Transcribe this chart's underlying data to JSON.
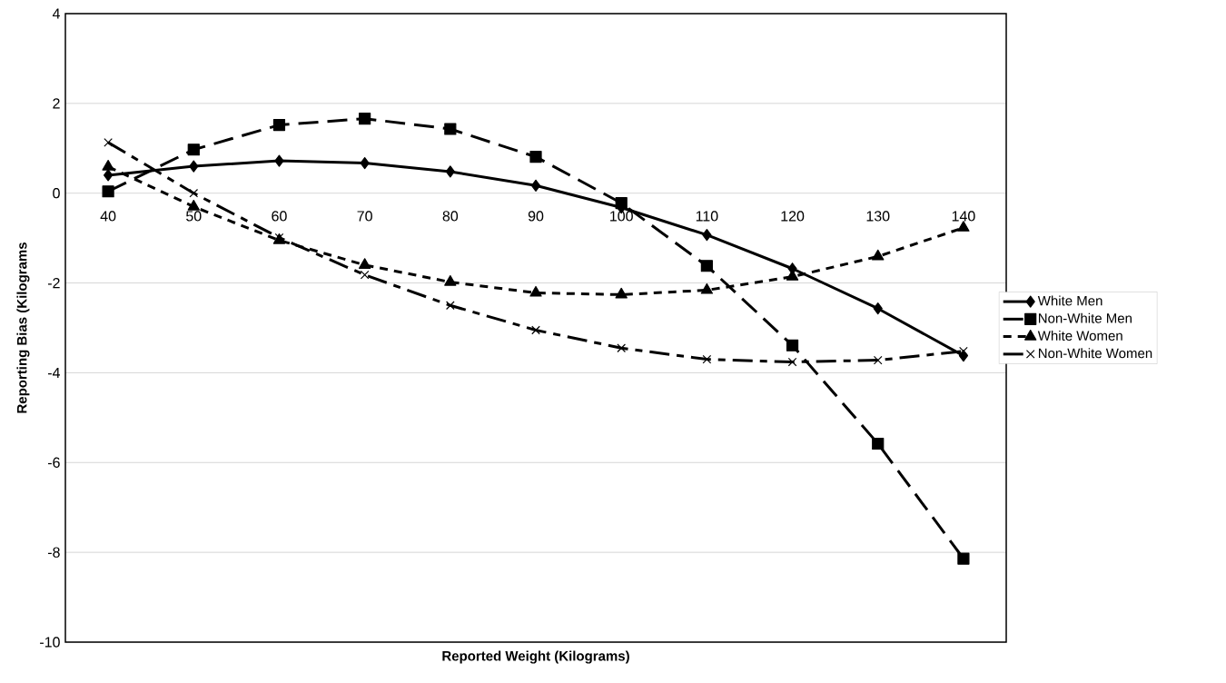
{
  "chart_data": {
    "type": "line",
    "xlabel": "Reported Weight (Kilograms)",
    "ylabel": "Reporting Bias (Kilograms",
    "categories": [
      "40",
      "50",
      "60",
      "70",
      "80",
      "90",
      "100",
      "110",
      "120",
      "130",
      "140"
    ],
    "series": [
      {
        "name": "White Men",
        "color": "#000000",
        "marker": "diamond",
        "line_style": "solid",
        "values": [
          0.4,
          0.6,
          0.72,
          0.67,
          0.48,
          0.17,
          -0.32,
          -0.93,
          -1.68,
          -2.57,
          -3.62
        ]
      },
      {
        "name": "Non-White Men",
        "color": "#000000",
        "marker": "square",
        "line_style": "dashed",
        "values": [
          0.04,
          0.97,
          1.52,
          1.66,
          1.43,
          0.81,
          -0.22,
          -1.62,
          -3.39,
          -5.58,
          -8.14
        ]
      },
      {
        "name": "White Women",
        "color": "#000000",
        "marker": "triangle",
        "line_style": "dotted",
        "values": [
          0.59,
          -0.3,
          -1.05,
          -1.6,
          -1.98,
          -2.22,
          -2.26,
          -2.16,
          -1.86,
          -1.41,
          -0.77
        ]
      },
      {
        "name": "Non-White Women",
        "color": "#000000",
        "marker": "cross",
        "line_style": "dashed",
        "values": [
          1.13,
          0.0,
          -0.99,
          -1.82,
          -2.5,
          -3.05,
          -3.45,
          -3.7,
          -3.76,
          -3.72,
          -3.52
        ]
      }
    ],
    "ylim": [
      -10,
      4
    ],
    "yticks": [
      -10,
      -8,
      -6,
      -4,
      -2,
      0,
      2,
      4
    ],
    "grid": "y",
    "legend": "right"
  }
}
